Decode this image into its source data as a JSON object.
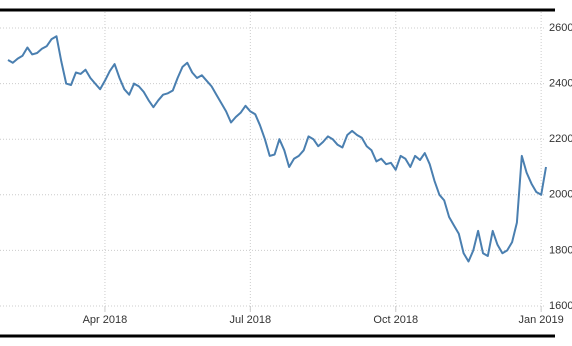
{
  "chart_data": {
    "type": "line",
    "categories": [
      null,
      null,
      null,
      null,
      null,
      null,
      null,
      null,
      null,
      null,
      null,
      null,
      null,
      null,
      null,
      null,
      null,
      null,
      null,
      null,
      "Apr 2018",
      null,
      null,
      null,
      null,
      null,
      null,
      null,
      null,
      null,
      null,
      null,
      null,
      null,
      null,
      null,
      null,
      null,
      null,
      null,
      null,
      null,
      null,
      null,
      null,
      null,
      null,
      null,
      null,
      null,
      "Jul 2018",
      null,
      null,
      null,
      null,
      null,
      null,
      null,
      null,
      null,
      null,
      null,
      null,
      null,
      null,
      null,
      null,
      null,
      null,
      null,
      null,
      null,
      null,
      null,
      null,
      null,
      null,
      null,
      null,
      null,
      "Oct 2018",
      null,
      null,
      null,
      null,
      null,
      null,
      null,
      null,
      null,
      null,
      null,
      null,
      null,
      null,
      null,
      null,
      null,
      null,
      null,
      null,
      null,
      null,
      null,
      null,
      null,
      null,
      null,
      null,
      null,
      "Jan 2019",
      null
    ],
    "values": [
      2485,
      2475,
      2490,
      2500,
      2530,
      2505,
      2510,
      2525,
      2535,
      2560,
      2570,
      2480,
      2400,
      2395,
      2440,
      2435,
      2450,
      2420,
      2400,
      2380,
      2410,
      2445,
      2470,
      2420,
      2380,
      2360,
      2400,
      2390,
      2370,
      2340,
      2315,
      2340,
      2360,
      2365,
      2375,
      2420,
      2460,
      2475,
      2440,
      2420,
      2430,
      2410,
      2390,
      2360,
      2330,
      2300,
      2260,
      2280,
      2295,
      2320,
      2300,
      2290,
      2250,
      2200,
      2140,
      2145,
      2200,
      2160,
      2100,
      2130,
      2140,
      2160,
      2210,
      2200,
      2175,
      2190,
      2210,
      2200,
      2180,
      2170,
      2215,
      2230,
      2215,
      2205,
      2175,
      2160,
      2120,
      2130,
      2110,
      2115,
      2090,
      2140,
      2130,
      2100,
      2140,
      2125,
      2150,
      2110,
      2050,
      2000,
      1980,
      1920,
      1890,
      1860,
      1790,
      1760,
      1800,
      1870,
      1790,
      1780,
      1870,
      1820,
      1790,
      1800,
      1830,
      1900,
      2140,
      2080,
      2040,
      2010,
      2000,
      2100
    ],
    "color": "#4a7fb0",
    "ylim": [
      1600,
      2600
    ],
    "yticks": [
      1600,
      1800,
      2000,
      2200,
      2400,
      2600
    ],
    "grid": true
  }
}
